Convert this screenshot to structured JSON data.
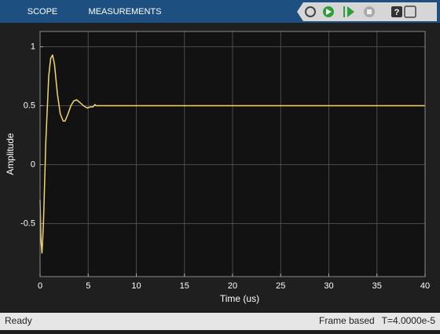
{
  "toolbar": {
    "tabs": [
      "SCOPE",
      "MEASUREMENTS"
    ]
  },
  "status": {
    "state": "Ready",
    "mode": "Frame based",
    "time": "T=4.0000e-5"
  },
  "chart_data": {
    "type": "line",
    "xlabel": "Time (us)",
    "ylabel": "Amplitude",
    "x": [
      0,
      0.1,
      0.2,
      0.35,
      0.6,
      0.9,
      1.1,
      1.3,
      1.5,
      1.8,
      2.1,
      2.4,
      2.6,
      2.9,
      3.2,
      3.5,
      3.8,
      4.1,
      4.5,
      4.9,
      5.2,
      5.5,
      5.7,
      5.8,
      6,
      40
    ],
    "series": [
      {
        "color": "#f2d66b",
        "values": [
          -0.3,
          -0.65,
          -0.75,
          -0.5,
          0.2,
          0.75,
          0.9,
          0.93,
          0.85,
          0.6,
          0.43,
          0.37,
          0.37,
          0.43,
          0.5,
          0.54,
          0.55,
          0.53,
          0.5,
          0.48,
          0.49,
          0.49,
          0.51,
          0.5,
          0.5,
          0.5
        ]
      }
    ],
    "xlim": [
      0,
      40
    ],
    "xticks": [
      0,
      5,
      10,
      15,
      20,
      25,
      30,
      35,
      40
    ],
    "ylim": [
      -0.95,
      1.13
    ],
    "yticks": [
      -0.5,
      0,
      0.5,
      1
    ],
    "grid": true
  }
}
